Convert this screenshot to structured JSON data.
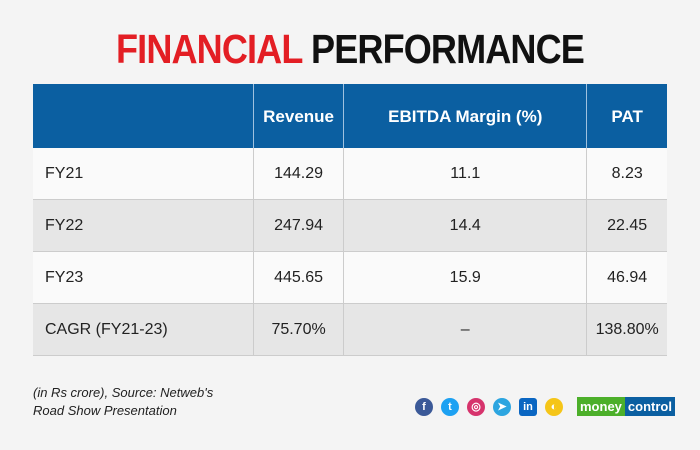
{
  "title": {
    "part1": "FINANCIAL",
    "part2": "PERFORMANCE"
  },
  "table": {
    "headers": [
      "",
      "Revenue",
      "EBITDA Margin (%)",
      "PAT"
    ],
    "rows": [
      [
        "FY21",
        "144.29",
        "11.1",
        "8.23"
      ],
      [
        "FY22",
        "247.94",
        "14.4",
        "22.45"
      ],
      [
        "FY23",
        "445.65",
        "15.9",
        "46.94"
      ],
      [
        "CAGR (FY21-23)",
        "75.70%",
        "–",
        "138.80%"
      ]
    ]
  },
  "source": {
    "line1": "(in Rs crore), Source: Netweb's",
    "line2": "Road Show Presentation"
  },
  "social": [
    {
      "icon": "facebook-icon",
      "glyph": "f",
      "color": "#3b5998"
    },
    {
      "icon": "twitter-icon",
      "glyph": "t",
      "color": "#1da1f2"
    },
    {
      "icon": "instagram-icon",
      "glyph": "◎",
      "color": "#d6336c"
    },
    {
      "icon": "telegram-icon",
      "glyph": "➤",
      "color": "#2ca5e0"
    },
    {
      "icon": "linkedin-icon",
      "glyph": "in",
      "color": "#0a66c2"
    },
    {
      "icon": "koo-icon",
      "glyph": "◐",
      "color": "#f5c518"
    }
  ],
  "brand": {
    "part1": "money",
    "part2": "control",
    "green": "#4caf2a",
    "blue": "#0b5fa1"
  }
}
